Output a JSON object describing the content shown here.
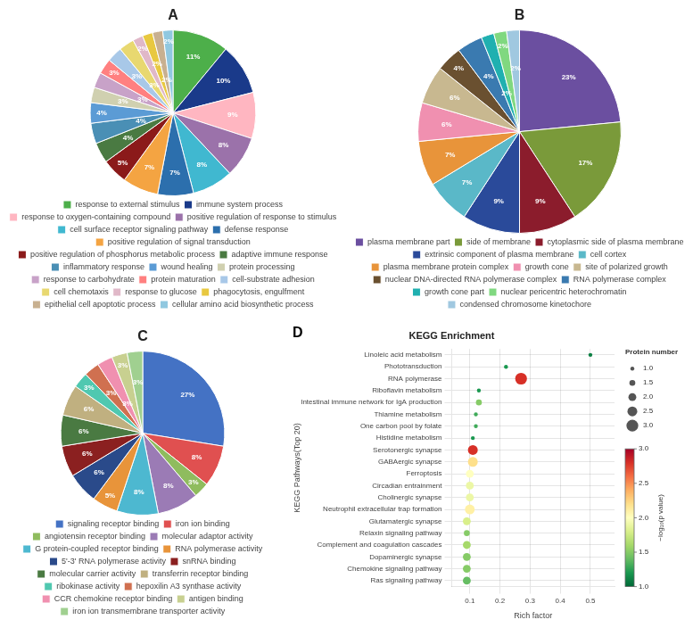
{
  "chart_data": [
    {
      "type": "pie",
      "title": "A",
      "categories": [
        "response to external stimulus",
        "immune system process",
        "response to oxygen-containing compound",
        "positive regulation of response to stimulus",
        "cell surface receptor signaling pathway",
        "defense response",
        "positive regulation of signal transduction",
        "positive regulation of phosphorus metabolic process",
        "adaptive immune response",
        "inflammatory response",
        "wound healing",
        "protein processing",
        "response to carbohydrate",
        "protein maturation",
        "cell-substrate adhesion",
        "cell chemotaxis",
        "response to glucose",
        "phagocytosis, engulfment",
        "epithelial cell apoptotic process",
        "cellular amino acid biosynthetic process"
      ],
      "values": [
        11,
        10,
        9,
        8,
        8,
        7,
        7,
        5,
        4,
        4,
        4,
        3,
        3,
        3,
        3,
        3,
        2,
        2,
        2,
        2
      ],
      "value_labels": [
        "11%",
        "10%",
        "9%",
        "8%",
        "8%",
        "7%",
        "7%",
        "5%",
        "4%",
        "4%",
        "4%",
        "3%",
        "3%",
        "3%",
        "3%",
        "3%",
        "2%",
        "2%",
        "2%",
        "2%"
      ],
      "colors": [
        "#4daf4a",
        "#1a3a8a",
        "#ffb6c1",
        "#9b72aa",
        "#40b8d0",
        "#2c6fad",
        "#f4a442",
        "#8b1a1a",
        "#4a7a42",
        "#4a8fb5",
        "#5b9bd5",
        "#d0d0b0",
        "#c8a2c8",
        "#ff8080",
        "#a8c8e8",
        "#e8d870",
        "#e0b8c8",
        "#e8c840",
        "#c8b090",
        "#90c8e0"
      ],
      "data_labels": true,
      "legend": "bottom"
    },
    {
      "type": "pie",
      "title": "B",
      "categories": [
        "plasma membrane part",
        "side of membrane",
        "cytoplasmic side of plasma membrane",
        "extrinsic component of plasma membrane",
        "cell cortex",
        "plasma membrane protein complex",
        "growth cone",
        "site of polarized growth",
        "nuclear DNA-directed RNA polymerase complex",
        "RNA polymerase complex",
        "growth cone part",
        "nuclear pericentric heterochromatin",
        "condensed chromosome kinetochore"
      ],
      "values": [
        23,
        17,
        9,
        9,
        7,
        7,
        6,
        6,
        4,
        4,
        2,
        2,
        2
      ],
      "value_labels": [
        "23%",
        "17%",
        "9%",
        "9%",
        "7%",
        "7%",
        "6%",
        "6%",
        "4%",
        "4%",
        "2%",
        "2%",
        "2%"
      ],
      "colors": [
        "#6b4fa0",
        "#7a9a3a",
        "#8b1c2c",
        "#2a4a9a",
        "#5ab8c8",
        "#e8943a",
        "#f090b0",
        "#c8b890",
        "#6a5030",
        "#3a7ab0",
        "#20b0b0",
        "#80d880",
        "#a0c8e0"
      ],
      "data_labels": true,
      "legend": "bottom"
    },
    {
      "type": "pie",
      "title": "C",
      "categories": [
        "signaling receptor binding",
        "iron ion binding",
        "angiotensin receptor binding",
        "molecular adaptor activity",
        "G protein-coupled receptor binding",
        "RNA polymerase activity",
        "5'-3' RNA polymerase activity",
        "snRNA binding",
        "molecular carrier activity",
        "transferrin receptor binding",
        "ribokinase activity",
        "hepoxilin A3 synthase activity",
        "CCR chemokine receptor binding",
        "antigen binding",
        "iron ion transmembrane transporter activity"
      ],
      "values": [
        27,
        8,
        3,
        8,
        8,
        5,
        6,
        6,
        6,
        6,
        3,
        3,
        3,
        3,
        3
      ],
      "value_labels": [
        "27%",
        "8%",
        "3%",
        "8%",
        "8%",
        "5%",
        "6%",
        "6%",
        "6%",
        "6%",
        "3%",
        "3%",
        "3%",
        "3%",
        "3%"
      ],
      "colors": [
        "#4472c4",
        "#e05050",
        "#8fbc5e",
        "#9b7bb5",
        "#4db8d0",
        "#e8943a",
        "#2a4a8a",
        "#8b2020",
        "#4a7a42",
        "#c0b080",
        "#50c8b0",
        "#d07050",
        "#f090b0",
        "#c8d090",
        "#a0d090"
      ],
      "data_labels": true,
      "legend": "bottom"
    },
    {
      "type": "bubble",
      "title": "KEGG Enrichment",
      "annotations": [
        "D"
      ],
      "categories": [
        "Linoleic acid metabolism",
        "Phototransduction",
        "RNA polymerase",
        "Riboflavin metabolism",
        "Intestinal immune network for IgA production",
        "Thiamine metabolism",
        "One carbon pool by folate",
        "Histidine metabolism",
        "Serotonergic synapse",
        "GABAergic synapse",
        "Ferroptosis",
        "Circadian entrainment",
        "Cholinergic synapse",
        "Neutrophil extracellular trap formation",
        "Glutamatergic synapse",
        "Relaxin signaling pathway",
        "Complement and coagulation cascades",
        "Dopaminergic synapse",
        "Chemokine signaling pathway",
        "Ras signaling pathway"
      ],
      "values": [
        0.5,
        0.22,
        0.27,
        0.13,
        0.13,
        0.12,
        0.12,
        0.11,
        0.11,
        0.11,
        0.1,
        0.1,
        0.1,
        0.1,
        0.09,
        0.09,
        0.09,
        0.09,
        0.09,
        0.09
      ],
      "color_values": [
        1.1,
        1.2,
        2.8,
        1.2,
        1.5,
        1.3,
        1.3,
        1.2,
        2.8,
        2.2,
        2.0,
        1.9,
        1.9,
        2.1,
        1.8,
        1.5,
        1.6,
        1.5,
        1.5,
        1.4
      ],
      "sizes": [
        1.0,
        1.0,
        3.0,
        1.0,
        1.5,
        1.0,
        1.0,
        1.0,
        2.5,
        2.5,
        2.0,
        2.0,
        2.0,
        2.5,
        2.0,
        1.5,
        2.0,
        2.0,
        2.0,
        2.0
      ],
      "xlabel": "Rich factor",
      "ylabel": "KEGG Pathways(Top 20)",
      "xlim": [
        0.04,
        0.58
      ],
      "xticks": [
        0.1,
        0.2,
        0.3,
        0.4,
        0.5
      ],
      "grid": true,
      "colorbar": {
        "label": "−log₁₀(p value)",
        "range": [
          1.0,
          3.0
        ],
        "ticks": [
          {
            "value": 1,
            "label": "1.0"
          },
          1.5,
          {
            "value": 2,
            "label": "2.0"
          },
          2.5,
          {
            "value": 3,
            "label": "3.0"
          }
        ]
      },
      "size_legend": {
        "title": "Protein number",
        "ticks": [
          {
            "value": 1,
            "label": "1.0"
          },
          1.5,
          {
            "value": 2,
            "label": "2.0"
          },
          2.5,
          {
            "value": 3,
            "label": "3.0"
          }
        ]
      }
    }
  ]
}
